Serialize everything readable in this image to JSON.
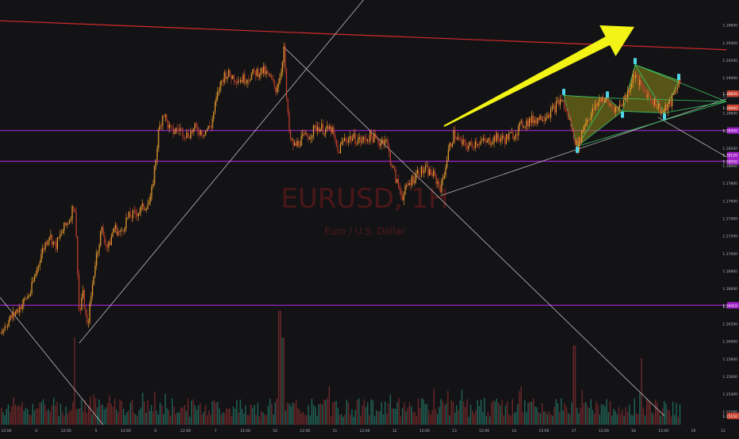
{
  "chart_data": {
    "type": "candlestick",
    "watermark": {
      "symbol": "EURUSD, 1H",
      "description": "Euro / U.S. Dollar"
    },
    "colors": {
      "background": "#131316",
      "up": "#f2a12e",
      "down": "#c8402e",
      "volume_up": "#26806f",
      "volume_down": "#8c2f2f",
      "resistance": "#d42a2a",
      "horizontal": "#a020c8",
      "arrow": "#f3f316",
      "pattern_fill": "#8f8a1c",
      "pattern_edge": "#39c463",
      "marker": "#4fd3e6",
      "trendline": "#d9d9d9"
    },
    "price_axis": {
      "min": 1.1505,
      "max": 1.1985,
      "ticks": [
        "1.19600",
        "1.19400",
        "1.19200",
        "1.19000",
        "1.18800",
        "1.18600",
        "1.18400",
        "1.18200",
        "1.18000",
        "1.17800",
        "1.17600",
        "1.17400",
        "1.17200",
        "1.17000",
        "1.16800",
        "1.16600",
        "1.16400",
        "1.16200",
        "1.16000",
        "1.15800",
        "1.15600",
        "1.15400",
        "1.15200"
      ],
      "price_labels": [
        {
          "value": 1.1882,
          "text": "1.18820",
          "color": "#c8402e"
        },
        {
          "value": 1.1866,
          "text": "1.18660",
          "color": "#c8402e"
        },
        {
          "value": 1.184,
          "text": "1.18400",
          "color": "#a020c8"
        },
        {
          "value": 1.1812,
          "text": "1.18120",
          "color": "#a020c8"
        },
        {
          "value": 1.1805,
          "text": "1.18050",
          "color": "#a020c8"
        },
        {
          "value": 1.1641,
          "text": "1.16410",
          "color": "#a020c8"
        },
        {
          "value": 1.1515,
          "text": "1.15150",
          "color": "#c8402e"
        }
      ]
    },
    "time_axis": {
      "labels": [
        "12:00",
        "4",
        "12:00",
        "5",
        "12:00",
        "6",
        "12:00",
        "7",
        "15:00",
        "10",
        "12:00",
        "11",
        "12:00",
        "12",
        "12:00",
        "13",
        "12:00",
        "14",
        "15:00",
        "17",
        "12:00",
        "18",
        "12:00",
        "19",
        "12"
      ]
    },
    "series": {
      "close_path": [
        [
          0,
          1.161
        ],
        [
          12,
          1.1625
        ],
        [
          24,
          1.1638
        ],
        [
          38,
          1.1655
        ],
        [
          52,
          1.17
        ],
        [
          62,
          1.1722
        ],
        [
          70,
          1.1708
        ],
        [
          80,
          1.1728
        ],
        [
          88,
          1.174
        ],
        [
          94,
          1.176
        ],
        [
          98,
          1.168
        ],
        [
          100,
          1.1625
        ],
        [
          104,
          1.1658
        ],
        [
          110,
          1.1615
        ],
        [
          115,
          1.1652
        ],
        [
          120,
          1.169
        ],
        [
          128,
          1.1728
        ],
        [
          136,
          1.1705
        ],
        [
          144,
          1.173
        ],
        [
          152,
          1.1722
        ],
        [
          160,
          1.174
        ],
        [
          170,
          1.1745
        ],
        [
          180,
          1.1752
        ],
        [
          190,
          1.176
        ],
        [
          196,
          1.1805
        ],
        [
          200,
          1.1838
        ],
        [
          206,
          1.1862
        ],
        [
          210,
          1.185
        ],
        [
          216,
          1.1838
        ],
        [
          226,
          1.1842
        ],
        [
          236,
          1.1835
        ],
        [
          246,
          1.1842
        ],
        [
          256,
          1.1838
        ],
        [
          266,
          1.1845
        ],
        [
          272,
          1.1872
        ],
        [
          278,
          1.1893
        ],
        [
          284,
          1.1905
        ],
        [
          292,
          1.1902
        ],
        [
          302,
          1.1898
        ],
        [
          312,
          1.19
        ],
        [
          322,
          1.1906
        ],
        [
          332,
          1.1908
        ],
        [
          342,
          1.1898
        ],
        [
          348,
          1.1887
        ],
        [
          354,
          1.1905
        ],
        [
          358,
          1.1935
        ],
        [
          362,
          1.1865
        ],
        [
          366,
          1.1828
        ],
        [
          372,
          1.1822
        ],
        [
          380,
          1.183
        ],
        [
          390,
          1.1835
        ],
        [
          400,
          1.1845
        ],
        [
          412,
          1.184
        ],
        [
          418,
          1.1842
        ],
        [
          426,
          1.1815
        ],
        [
          434,
          1.183
        ],
        [
          444,
          1.1832
        ],
        [
          456,
          1.1828
        ],
        [
          468,
          1.1834
        ],
        [
          478,
          1.1826
        ],
        [
          486,
          1.1832
        ],
        [
          492,
          1.1808
        ],
        [
          500,
          1.1782
        ],
        [
          508,
          1.1765
        ],
        [
          516,
          1.178
        ],
        [
          526,
          1.1792
        ],
        [
          536,
          1.1795
        ],
        [
          546,
          1.179
        ],
        [
          556,
          1.1774
        ],
        [
          566,
          1.1818
        ],
        [
          572,
          1.1836
        ],
        [
          582,
          1.1825
        ],
        [
          592,
          1.1822
        ],
        [
          602,
          1.1828
        ],
        [
          614,
          1.1826
        ],
        [
          624,
          1.1832
        ],
        [
          636,
          1.183
        ],
        [
          648,
          1.1836
        ],
        [
          660,
          1.1848
        ],
        [
          672,
          1.1852
        ],
        [
          684,
          1.1856
        ],
        [
          696,
          1.1862
        ],
        [
          708,
          1.1876
        ],
        [
          718,
          1.1852
        ],
        [
          728,
          1.182
        ],
        [
          738,
          1.185
        ],
        [
          748,
          1.1862
        ],
        [
          758,
          1.1878
        ],
        [
          768,
          1.187
        ],
        [
          778,
          1.1864
        ],
        [
          790,
          1.188
        ],
        [
          800,
          1.1905
        ],
        [
          808,
          1.189
        ],
        [
          816,
          1.1882
        ],
        [
          826,
          1.1872
        ],
        [
          836,
          1.186
        ],
        [
          846,
          1.1872
        ],
        [
          856,
          1.1897
        ]
      ],
      "volume": {
        "seed": 7,
        "spikes": [
          [
            94,
            0.55
          ],
          [
            352,
            0.72
          ],
          [
            356,
            0.55
          ],
          [
            724,
            0.5
          ],
          [
            808,
            0.42
          ]
        ]
      }
    },
    "drawings": {
      "resistance_line": [
        [
          0,
          1.1965
        ],
        [
          916,
          1.1932
        ]
      ],
      "horizontal_levels": [
        1.184,
        1.1805,
        1.1641
      ],
      "trendlines": [
        [
          [
            0,
            1.165
          ],
          [
            130,
            1.1505
          ]
        ],
        [
          [
            100,
            1.1598
          ],
          [
            478,
            1.201
          ]
        ],
        [
          [
            358,
            1.1935
          ],
          [
            838,
            1.1515
          ]
        ],
        [
          [
            556,
            1.1766
          ],
          [
            916,
            1.1876
          ]
        ],
        [
          [
            830,
            1.1855
          ],
          [
            916,
            1.181
          ]
        ]
      ],
      "harmonic_pattern": {
        "points": [
          [
            711,
            1.188
          ],
          [
            728,
            1.1822
          ],
          [
            766,
            1.1877
          ],
          [
            785,
            1.1862
          ],
          [
            801,
            1.1915
          ],
          [
            838,
            1.186
          ],
          [
            856,
            1.1897
          ]
        ],
        "apex": [
          916,
          1.1873
        ],
        "markers": [
          [
            711,
            1.1884
          ],
          [
            728,
            1.1818
          ],
          [
            766,
            1.1881
          ],
          [
            785,
            1.1858
          ],
          [
            801,
            1.1919
          ],
          [
            838,
            1.1856
          ],
          [
            856,
            1.1901
          ]
        ]
      },
      "arrow": {
        "from": [
          560,
          1.1845
        ],
        "to": [
          800,
          1.1958
        ]
      }
    }
  }
}
